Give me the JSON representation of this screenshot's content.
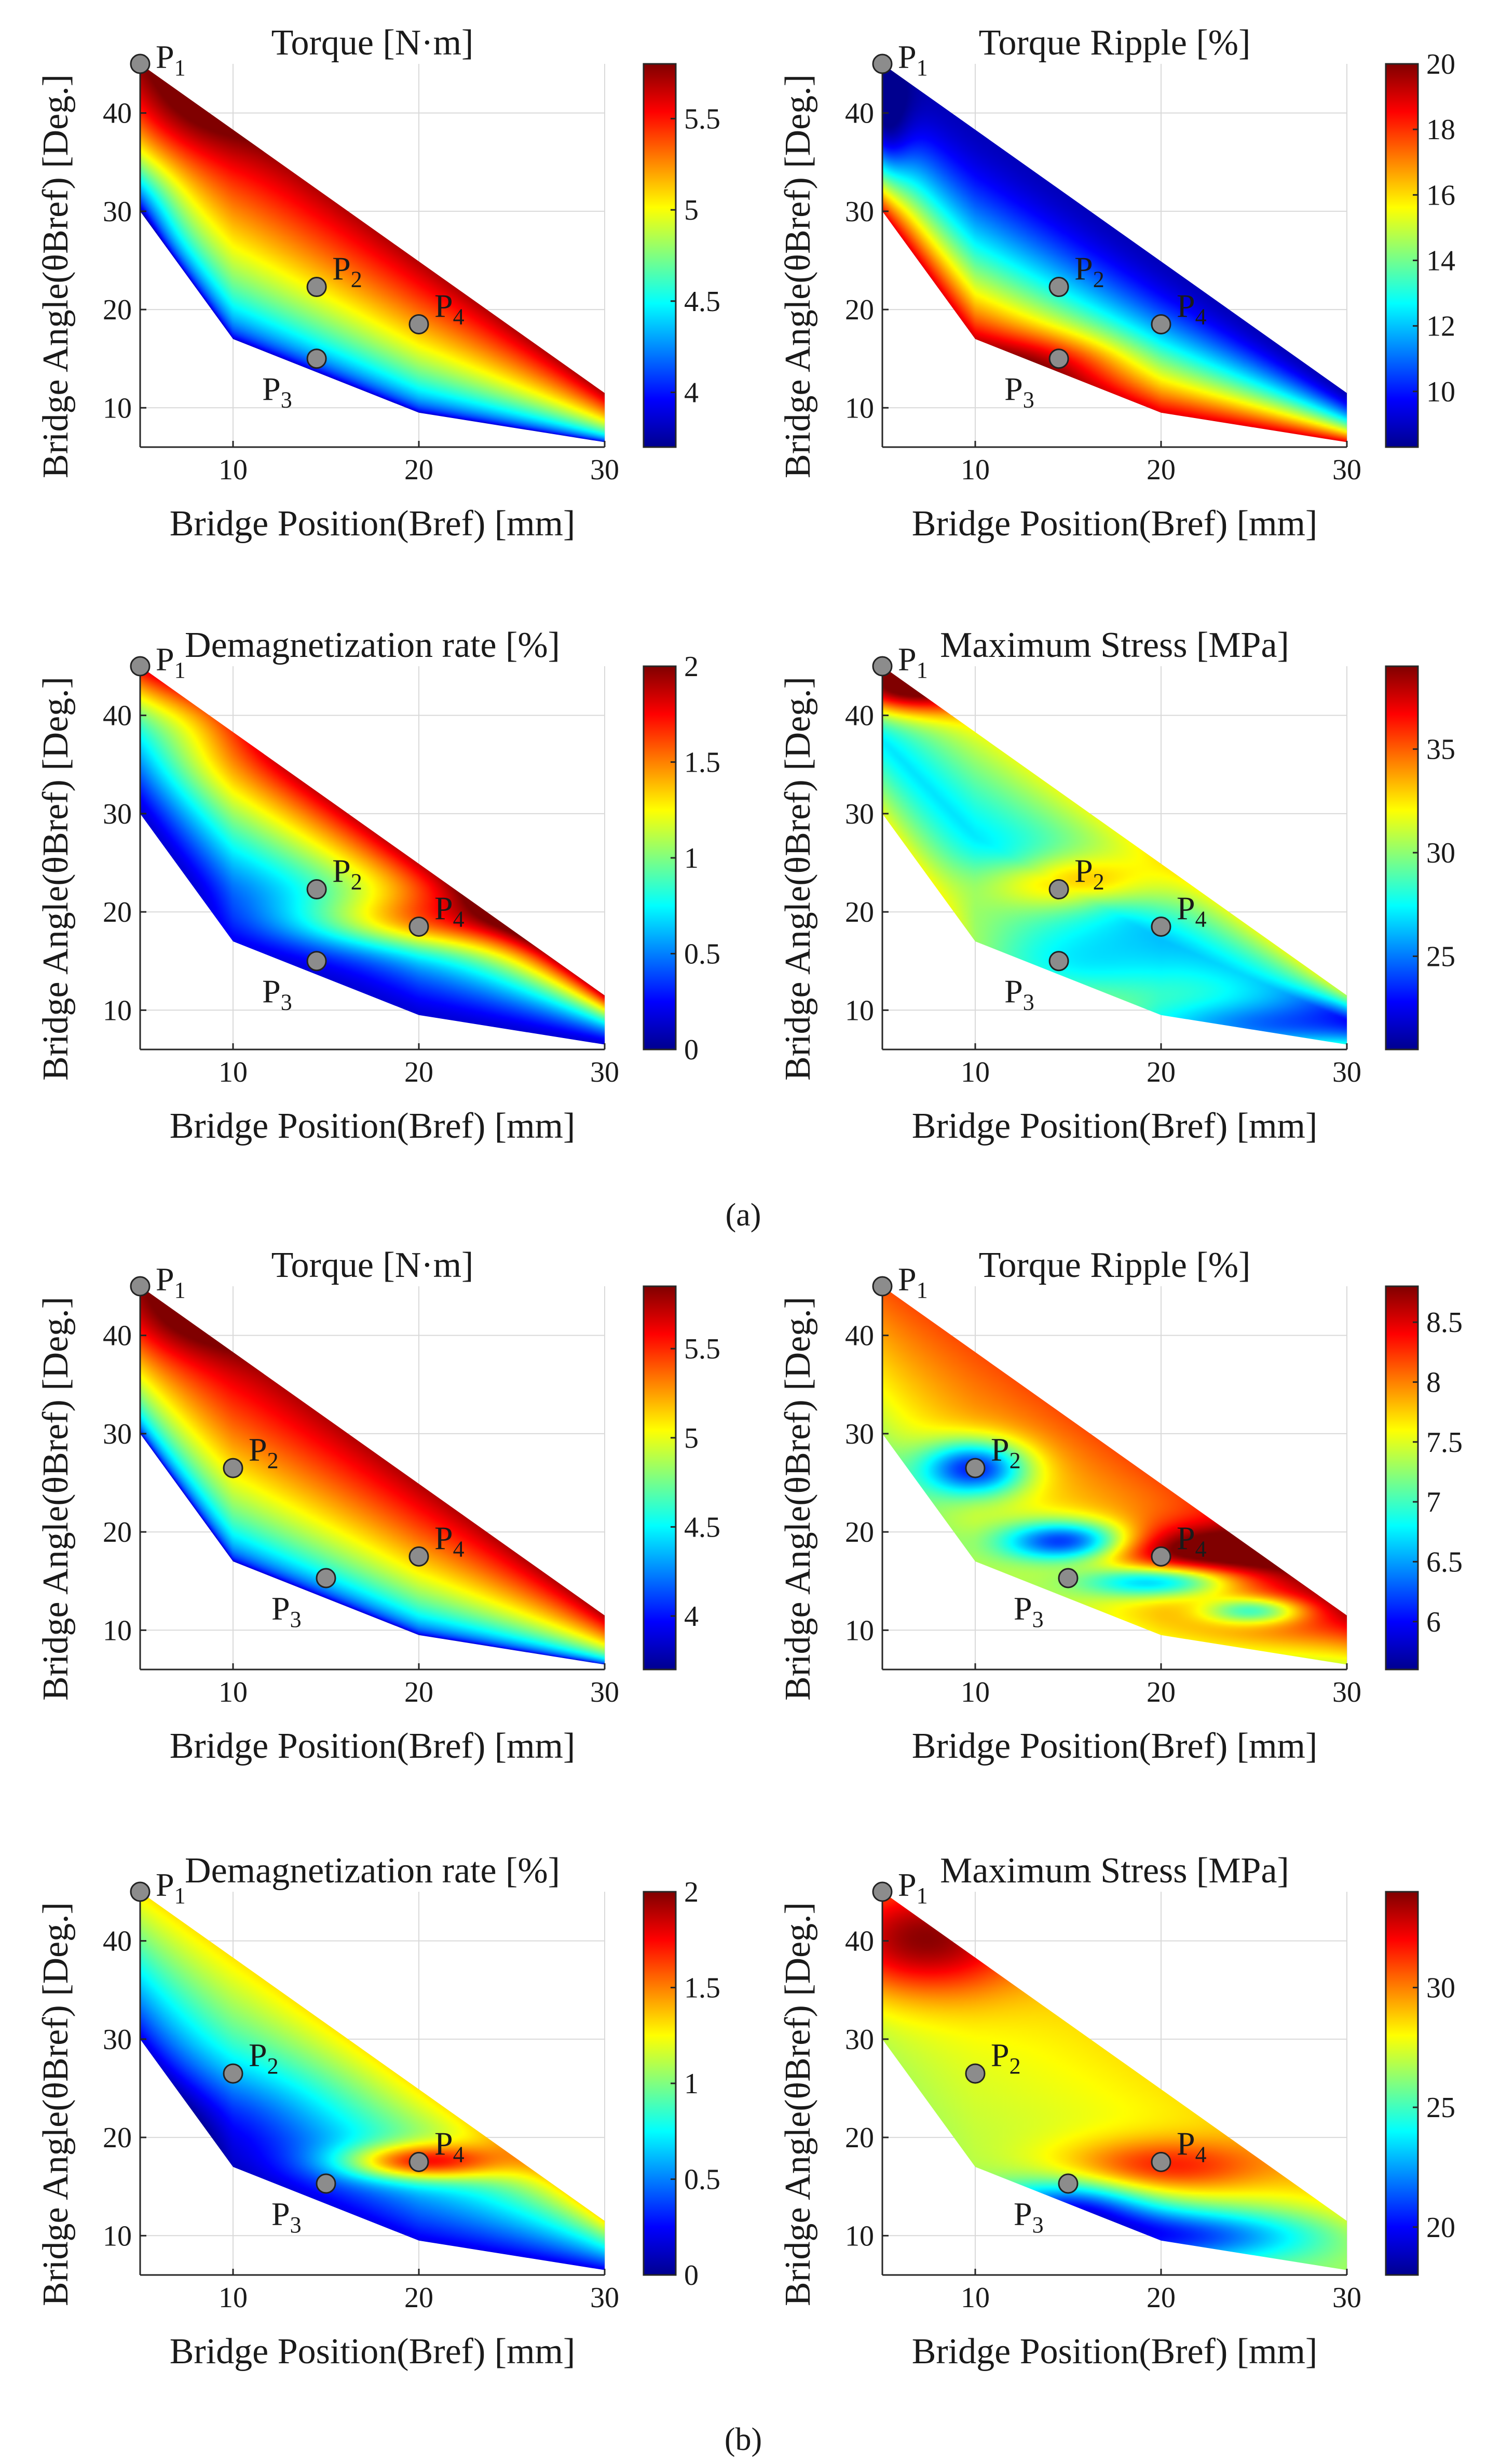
{
  "figure": {
    "label_a": "(a)",
    "label_b": "(b)"
  },
  "colors": {
    "jet": [
      "#00008f",
      "#0000ff",
      "#0080ff",
      "#00ffff",
      "#80ff80",
      "#ffff00",
      "#ff8000",
      "#ff0000",
      "#800000"
    ],
    "marker_fill": "#8c8c8c",
    "grid": "#d9d9d9"
  },
  "chart_data": [
    {
      "type": "heatmap",
      "panel": "a",
      "title": "Torque [N·m]",
      "xlabel": "Bridge Position(Bref) [mm]",
      "ylabel": "Bridge Angle(θBref) [Deg.]",
      "xlim": [
        5,
        30
      ],
      "ylim": [
        6,
        45
      ],
      "xticks": [
        10,
        20,
        30
      ],
      "yticks": [
        10,
        20,
        30,
        40
      ],
      "clim": [
        3.7,
        5.8
      ],
      "cticks": [
        4,
        4.5,
        5,
        5.5
      ],
      "domain": {
        "upper": [
          [
            5,
            45
          ],
          [
            30,
            11.5
          ]
        ],
        "lower": [
          [
            5,
            30
          ],
          [
            10,
            17
          ],
          [
            20,
            9.5
          ],
          [
            30,
            6.5
          ]
        ]
      },
      "field": "torque_a",
      "points": [
        {
          "label": "P1",
          "x": 5,
          "y": 45,
          "label_color": "black"
        },
        {
          "label": "P2",
          "x": 14.5,
          "y": 22.3,
          "label_color": "white"
        },
        {
          "label": "P3",
          "x": 14.5,
          "y": 15,
          "label_color": "black"
        },
        {
          "label": "P4",
          "x": 20,
          "y": 18.5,
          "label_color": "white"
        }
      ]
    },
    {
      "type": "heatmap",
      "panel": "a",
      "title": "Torque Ripple [%]",
      "xlabel": "Bridge Position(Bref) [mm]",
      "ylabel": "Bridge Angle(θBref) [Deg.]",
      "xlim": [
        5,
        30
      ],
      "ylim": [
        6,
        45
      ],
      "xticks": [
        10,
        20,
        30
      ],
      "yticks": [
        10,
        20,
        30,
        40
      ],
      "clim": [
        8.3,
        20
      ],
      "cticks": [
        10,
        12,
        14,
        16,
        18,
        20
      ],
      "domain": {
        "upper": [
          [
            5,
            45
          ],
          [
            30,
            11.5
          ]
        ],
        "lower": [
          [
            5,
            30
          ],
          [
            10,
            17
          ],
          [
            20,
            9.5
          ],
          [
            30,
            6.5
          ]
        ]
      },
      "field": "ripple_a",
      "points": [
        {
          "label": "P1",
          "x": 5,
          "y": 45,
          "label_color": "black"
        },
        {
          "label": "P2",
          "x": 14.5,
          "y": 22.3,
          "label_color": "white"
        },
        {
          "label": "P3",
          "x": 14.5,
          "y": 15,
          "label_color": "black"
        },
        {
          "label": "P4",
          "x": 20,
          "y": 18.5,
          "label_color": "white"
        }
      ]
    },
    {
      "type": "heatmap",
      "panel": "a",
      "title": "Demagnetization rate [%]",
      "xlabel": "Bridge Position(Bref) [mm]",
      "ylabel": "Bridge Angle(θBref) [Deg.]",
      "xlim": [
        5,
        30
      ],
      "ylim": [
        6,
        45
      ],
      "xticks": [
        10,
        20,
        30
      ],
      "yticks": [
        10,
        20,
        30,
        40
      ],
      "clim": [
        0,
        2
      ],
      "cticks": [
        0,
        0.5,
        1,
        1.5,
        2
      ],
      "domain": {
        "upper": [
          [
            5,
            45
          ],
          [
            30,
            11.5
          ]
        ],
        "lower": [
          [
            5,
            30
          ],
          [
            10,
            17
          ],
          [
            20,
            9.5
          ],
          [
            30,
            6.5
          ]
        ]
      },
      "field": "demag_a",
      "points": [
        {
          "label": "P1",
          "x": 5,
          "y": 45,
          "label_color": "black"
        },
        {
          "label": "P2",
          "x": 14.5,
          "y": 22.3,
          "label_color": "white"
        },
        {
          "label": "P3",
          "x": 14.5,
          "y": 15,
          "label_color": "black"
        },
        {
          "label": "P4",
          "x": 20,
          "y": 18.5,
          "label_color": "white"
        }
      ]
    },
    {
      "type": "heatmap",
      "panel": "a",
      "title": "Maximum Stress [MPa]",
      "xlabel": "Bridge Position(Bref) [mm]",
      "ylabel": "Bridge Angle(θBref) [Deg.]",
      "xlim": [
        5,
        30
      ],
      "ylim": [
        6,
        45
      ],
      "xticks": [
        10,
        20,
        30
      ],
      "yticks": [
        10,
        20,
        30,
        40
      ],
      "clim": [
        20.5,
        39
      ],
      "cticks": [
        25,
        30,
        35
      ],
      "domain": {
        "upper": [
          [
            5,
            45
          ],
          [
            30,
            11.5
          ]
        ],
        "lower": [
          [
            5,
            30
          ],
          [
            10,
            17
          ],
          [
            20,
            9.5
          ],
          [
            30,
            6.5
          ]
        ]
      },
      "field": "stress_a",
      "points": [
        {
          "label": "P1",
          "x": 5,
          "y": 45,
          "label_color": "black"
        },
        {
          "label": "P2",
          "x": 14.5,
          "y": 22.3,
          "label_color": "black"
        },
        {
          "label": "P3",
          "x": 14.5,
          "y": 15,
          "label_color": "black"
        },
        {
          "label": "P4",
          "x": 20,
          "y": 18.5,
          "label_color": "black"
        }
      ]
    },
    {
      "type": "heatmap",
      "panel": "b",
      "title": "Torque [N·m]",
      "xlabel": "Bridge Position(Bref) [mm]",
      "ylabel": "Bridge Angle(θBref) [Deg.]",
      "xlim": [
        5,
        30
      ],
      "ylim": [
        6,
        45
      ],
      "xticks": [
        10,
        20,
        30
      ],
      "yticks": [
        10,
        20,
        30,
        40
      ],
      "clim": [
        3.7,
        5.85
      ],
      "cticks": [
        4,
        4.5,
        5,
        5.5
      ],
      "domain": {
        "upper": [
          [
            5,
            45
          ],
          [
            30,
            11.5
          ]
        ],
        "lower": [
          [
            5,
            30
          ],
          [
            10,
            17
          ],
          [
            20,
            9.5
          ],
          [
            30,
            6.5
          ]
        ]
      },
      "field": "torque_b",
      "points": [
        {
          "label": "P1",
          "x": 5,
          "y": 45,
          "label_color": "black"
        },
        {
          "label": "P2",
          "x": 10,
          "y": 26.5,
          "label_color": "black"
        },
        {
          "label": "P3",
          "x": 15,
          "y": 15.3,
          "label_color": "black"
        },
        {
          "label": "P4",
          "x": 20,
          "y": 17.5,
          "label_color": "black"
        }
      ]
    },
    {
      "type": "heatmap",
      "panel": "b",
      "title": "Torque Ripple [%]",
      "xlabel": "Bridge Position(Bref) [mm]",
      "ylabel": "Bridge Angle(θBref) [Deg.]",
      "xlim": [
        5,
        30
      ],
      "ylim": [
        6,
        45
      ],
      "xticks": [
        10,
        20,
        30
      ],
      "yticks": [
        10,
        20,
        30,
        40
      ],
      "clim": [
        5.6,
        8.8
      ],
      "cticks": [
        6,
        6.5,
        7,
        7.5,
        8,
        8.5
      ],
      "domain": {
        "upper": [
          [
            5,
            45
          ],
          [
            30,
            11.5
          ]
        ],
        "lower": [
          [
            5,
            30
          ],
          [
            10,
            17
          ],
          [
            20,
            9.5
          ],
          [
            30,
            6.5
          ]
        ]
      },
      "field": "ripple_b",
      "points": [
        {
          "label": "P1",
          "x": 5,
          "y": 45,
          "label_color": "black"
        },
        {
          "label": "P2",
          "x": 10,
          "y": 26.5,
          "label_color": "black"
        },
        {
          "label": "P3",
          "x": 15,
          "y": 15.3,
          "label_color": "black"
        },
        {
          "label": "P4",
          "x": 20,
          "y": 17.5,
          "label_color": "white"
        }
      ]
    },
    {
      "type": "heatmap",
      "panel": "b",
      "title": "Demagnetization rate [%]",
      "xlabel": "Bridge Position(Bref) [mm]",
      "ylabel": "Bridge Angle(θBref) [Deg.]",
      "xlim": [
        5,
        30
      ],
      "ylim": [
        6,
        45
      ],
      "xticks": [
        10,
        20,
        30
      ],
      "yticks": [
        10,
        20,
        30,
        40
      ],
      "clim": [
        0,
        2
      ],
      "cticks": [
        0,
        0.5,
        1,
        1.5,
        2
      ],
      "domain": {
        "upper": [
          [
            5,
            45
          ],
          [
            30,
            11.5
          ]
        ],
        "lower": [
          [
            5,
            30
          ],
          [
            10,
            17
          ],
          [
            20,
            9.5
          ],
          [
            30,
            6.5
          ]
        ]
      },
      "field": "demag_b",
      "points": [
        {
          "label": "P1",
          "x": 5,
          "y": 45,
          "label_color": "black"
        },
        {
          "label": "P2",
          "x": 10,
          "y": 26.5,
          "label_color": "black"
        },
        {
          "label": "P3",
          "x": 15,
          "y": 15.3,
          "label_color": "black"
        },
        {
          "label": "P4",
          "x": 20,
          "y": 17.5,
          "label_color": "black"
        }
      ]
    },
    {
      "type": "heatmap",
      "panel": "b",
      "title": "Maximum Stress [MPa]",
      "xlabel": "Bridge Position(Bref) [mm]",
      "ylabel": "Bridge Angle(θBref) [Deg.]",
      "xlim": [
        5,
        30
      ],
      "ylim": [
        6,
        45
      ],
      "xticks": [
        10,
        20,
        30
      ],
      "yticks": [
        10,
        20,
        30,
        40
      ],
      "clim": [
        18,
        34
      ],
      "cticks": [
        20,
        25,
        30
      ],
      "domain": {
        "upper": [
          [
            5,
            45
          ],
          [
            30,
            11.5
          ]
        ],
        "lower": [
          [
            5,
            30
          ],
          [
            10,
            17
          ],
          [
            20,
            9.5
          ],
          [
            30,
            6.5
          ]
        ]
      },
      "field": "stress_b",
      "points": [
        {
          "label": "P1",
          "x": 5,
          "y": 45,
          "label_color": "black"
        },
        {
          "label": "P2",
          "x": 10,
          "y": 26.5,
          "label_color": "black"
        },
        {
          "label": "P3",
          "x": 15,
          "y": 15.3,
          "label_color": "black"
        },
        {
          "label": "P4",
          "x": 20,
          "y": 17.5,
          "label_color": "black"
        }
      ]
    }
  ]
}
